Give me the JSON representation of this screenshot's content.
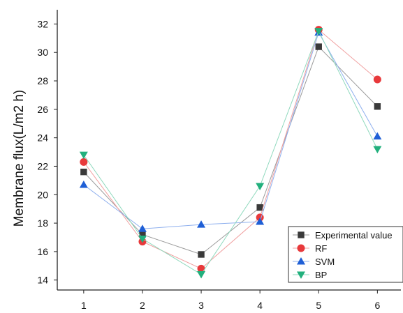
{
  "chart_data": {
    "type": "line",
    "title": "",
    "xlabel": "",
    "ylabel": "Membrane flux(L/m2 h)",
    "x": [
      1,
      2,
      3,
      4,
      5,
      6
    ],
    "xlim": [
      0.55,
      6.4
    ],
    "ylim": [
      13.3,
      33
    ],
    "yticks": [
      14,
      16,
      18,
      20,
      22,
      24,
      26,
      28,
      30,
      32
    ],
    "grid": false,
    "legend_position": "bottom-right",
    "series": [
      {
        "name": "Experimental value",
        "marker": "square",
        "color": "#3a3a3a",
        "line_color": "#9a9a9a",
        "values": [
          21.6,
          17.2,
          15.8,
          19.1,
          30.4,
          26.2
        ]
      },
      {
        "name": "RF",
        "marker": "circle",
        "color": "#e8393b",
        "line_color": "#f0a0a0",
        "values": [
          22.3,
          16.7,
          14.8,
          18.4,
          31.6,
          28.1
        ]
      },
      {
        "name": "SVM",
        "marker": "triangle-up",
        "color": "#1f5fd6",
        "line_color": "#8fb0ee",
        "values": [
          20.7,
          17.6,
          17.9,
          18.1,
          31.4,
          24.1
        ]
      },
      {
        "name": "BP",
        "marker": "triangle-down",
        "color": "#22b07d",
        "line_color": "#8fd9bd",
        "values": [
          22.8,
          16.9,
          14.4,
          20.6,
          31.5,
          23.2
        ]
      }
    ]
  }
}
